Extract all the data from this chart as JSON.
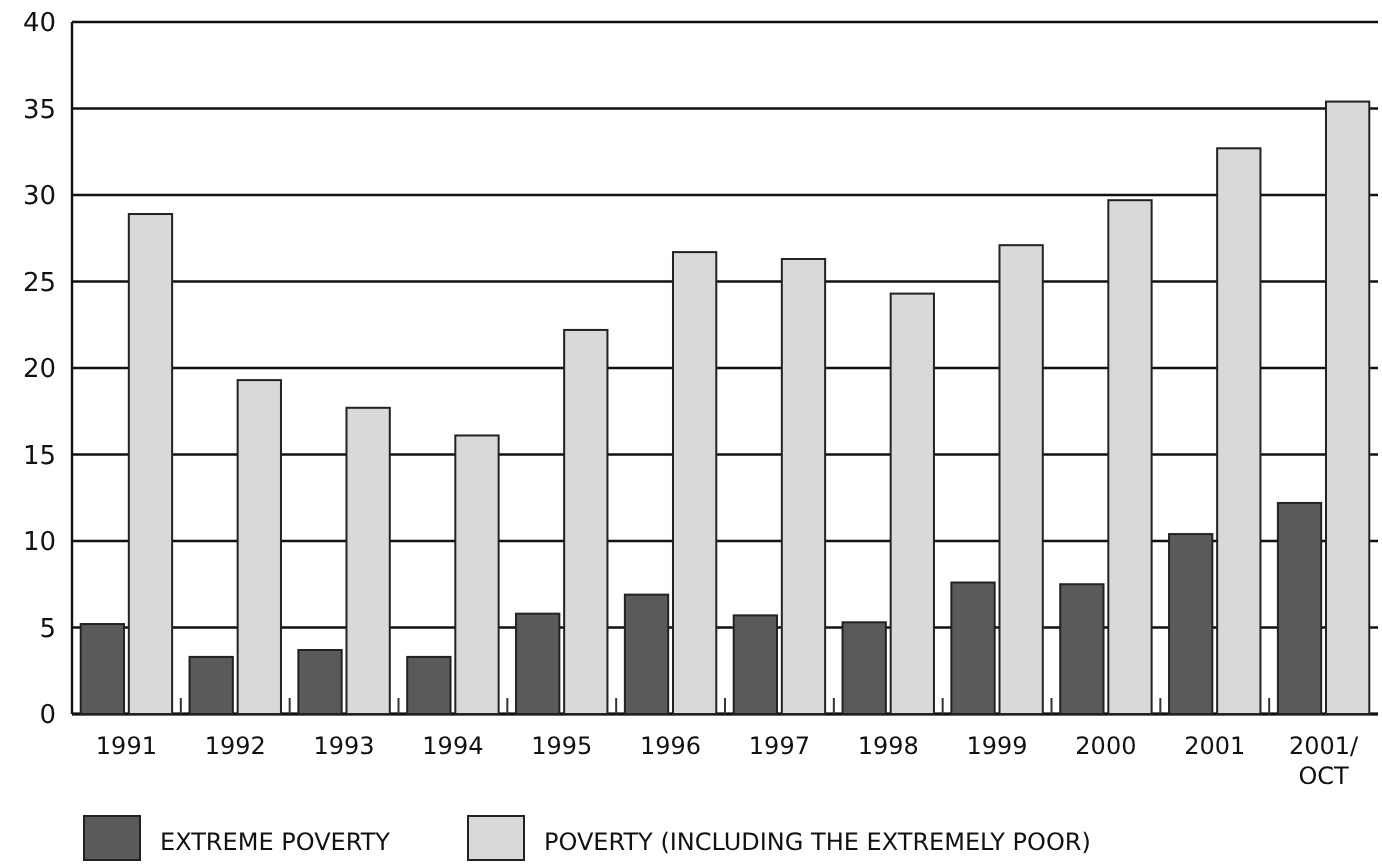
{
  "chart_data": {
    "type": "bar",
    "categories": [
      "1991",
      "1992",
      "1993",
      "1994",
      "1995",
      "1996",
      "1997",
      "1998",
      "1999",
      "2000",
      "2001",
      "2001/\nOCT"
    ],
    "series": [
      {
        "name": "EXTREME POVERTY",
        "color": "#5a5a5a",
        "values": [
          5.2,
          3.3,
          3.7,
          3.3,
          5.8,
          6.9,
          5.7,
          5.3,
          7.6,
          7.5,
          10.4,
          12.2
        ]
      },
      {
        "name": "POVERTY (INCLUDING THE EXTREMELY POOR)",
        "color": "#d9d9d9",
        "values": [
          28.9,
          19.3,
          17.7,
          16.1,
          22.2,
          26.7,
          26.3,
          24.3,
          27.1,
          29.7,
          32.7,
          35.4
        ]
      }
    ],
    "ylim": [
      0,
      40
    ],
    "yticks": [
      0,
      5,
      10,
      15,
      20,
      25,
      30,
      35,
      40
    ],
    "grid": "y",
    "legend": "bottom"
  }
}
